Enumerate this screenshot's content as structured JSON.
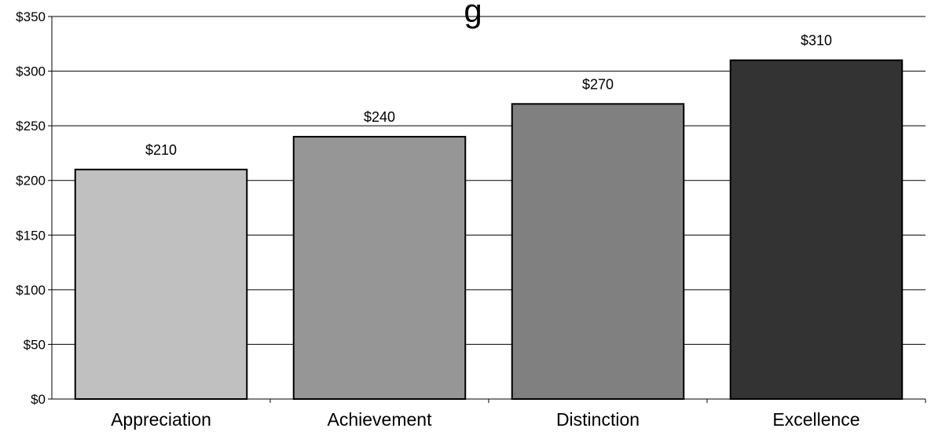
{
  "chart_data": {
    "type": "bar",
    "title": "g",
    "categories": [
      "Appreciation",
      "Achievement",
      "Distinction",
      "Excellence"
    ],
    "values": [
      210,
      240,
      270,
      310
    ],
    "value_labels": [
      "$210",
      "$240",
      "$270",
      "$310"
    ],
    "ylim": [
      0,
      350
    ],
    "y_ticks": [
      0,
      50,
      100,
      150,
      200,
      250,
      300,
      350
    ],
    "y_tick_labels": [
      "$0",
      "$50",
      "$100",
      "$150",
      "$200",
      "$250",
      "$300",
      "$350"
    ],
    "grid": true,
    "legend": "none",
    "bar_colors": [
      "#c0c0c0",
      "#969696",
      "#808080",
      "#333333"
    ],
    "bar_border_color": "#000000",
    "grid_color": "#000000"
  }
}
